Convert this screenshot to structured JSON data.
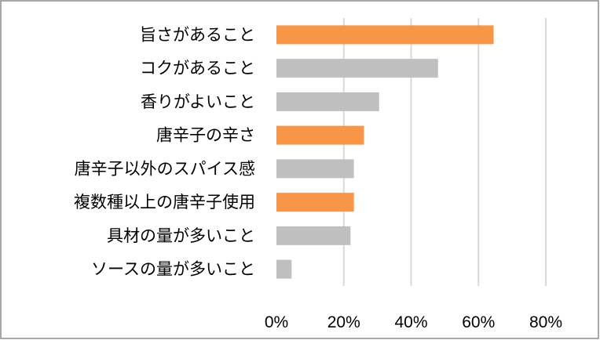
{
  "chart_data": {
    "type": "bar",
    "orientation": "horizontal",
    "categories": [
      "旨さがあること",
      "コクがあること",
      "香りがよいこと",
      "唐辛子の辛さ",
      "唐辛子以外のスパイス感",
      "複数種以上の唐辛子使用",
      "具材の量が多いこと",
      "ソースの量が多いこと"
    ],
    "values": [
      64.5,
      48,
      30.5,
      26,
      23,
      23,
      22,
      4.5
    ],
    "bar_colors": [
      "#F79646",
      "#BFBFBF",
      "#BFBFBF",
      "#F79646",
      "#BFBFBF",
      "#F79646",
      "#BFBFBF",
      "#BFBFBF"
    ],
    "xlim": [
      0,
      80
    ],
    "x_ticks": [
      0,
      20,
      40,
      60,
      80
    ],
    "x_tick_labels": [
      "0%",
      "20%",
      "40%",
      "60%",
      "80%"
    ],
    "grid": "vertical",
    "legend": "none",
    "title": "",
    "xlabel": "",
    "ylabel": ""
  },
  "colors": {
    "highlight": "#F79646",
    "default": "#BFBFBF",
    "gridline": "#D9D9D9",
    "border": "#8C8C8C"
  }
}
